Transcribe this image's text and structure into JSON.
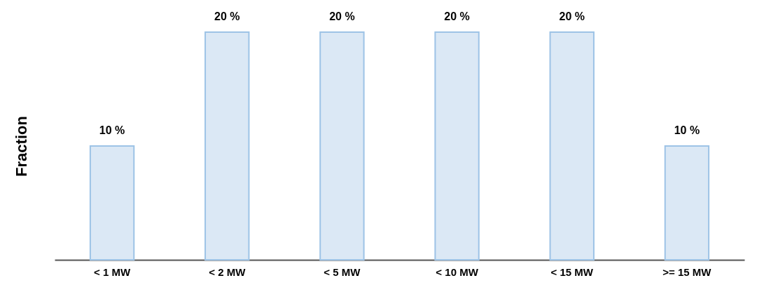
{
  "chart_data": {
    "type": "bar",
    "ylabel": "Fraction",
    "categories": [
      "< 1 MW",
      "< 2 MW",
      "< 5 MW",
      "< 10 MW",
      "< 15 MW",
      ">= 15 MW"
    ],
    "values": [
      10,
      20,
      20,
      20,
      20,
      10
    ],
    "value_labels": [
      "10 %",
      "20 %",
      "20 %",
      "20 %",
      "20 %",
      "10 %"
    ],
    "color": "#dbe8f5",
    "grid": false
  }
}
